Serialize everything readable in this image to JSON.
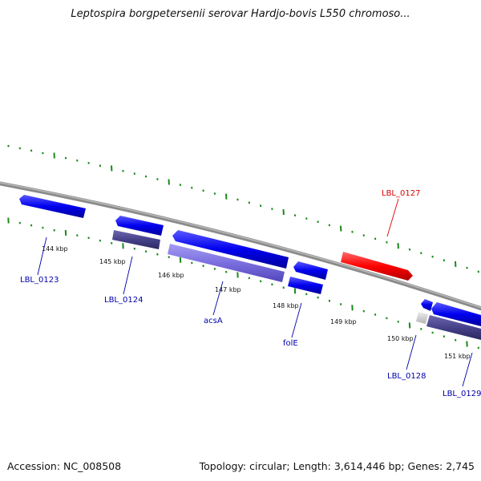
{
  "title": "Leptospira borgpetersenii serovar Hardjo-bovis L550 chromoso...",
  "footer": {
    "accession": "Accession: NC_008508",
    "summary": "Topology: circular; Length: 3,614,446 bp; Genes: 2,745"
  },
  "colors": {
    "backbone": "#8a8a8a",
    "tick": "#1a8a1a",
    "gene_forward": "#0000ee",
    "gene_reverse": "#0000ee",
    "gene_highlight": "#ff0000",
    "cds_light": "#7b6fe0",
    "cds_dark": "#46428a",
    "label_blue": "#0000aa",
    "label_red": "#dd0000"
  },
  "tick_labels": [
    "144 kbp",
    "145 kbp",
    "146 kbp",
    "147 kbp",
    "148 kbp",
    "149 kbp",
    "150 kbp",
    "151 kbp"
  ],
  "gene_labels": [
    {
      "id": "lbl-0123",
      "text": "LBL_0123",
      "color": "blue"
    },
    {
      "id": "lbl-0124",
      "text": "LBL_0124",
      "color": "blue"
    },
    {
      "id": "acsa",
      "text": "acsA",
      "color": "blue"
    },
    {
      "id": "fole",
      "text": "folE",
      "color": "blue"
    },
    {
      "id": "lbl-0127",
      "text": "LBL_0127",
      "color": "red"
    },
    {
      "id": "lbl-0128",
      "text": "LBL_0128",
      "color": "blue"
    },
    {
      "id": "lbl-0129",
      "text": "LBL_0129",
      "color": "blue"
    }
  ]
}
